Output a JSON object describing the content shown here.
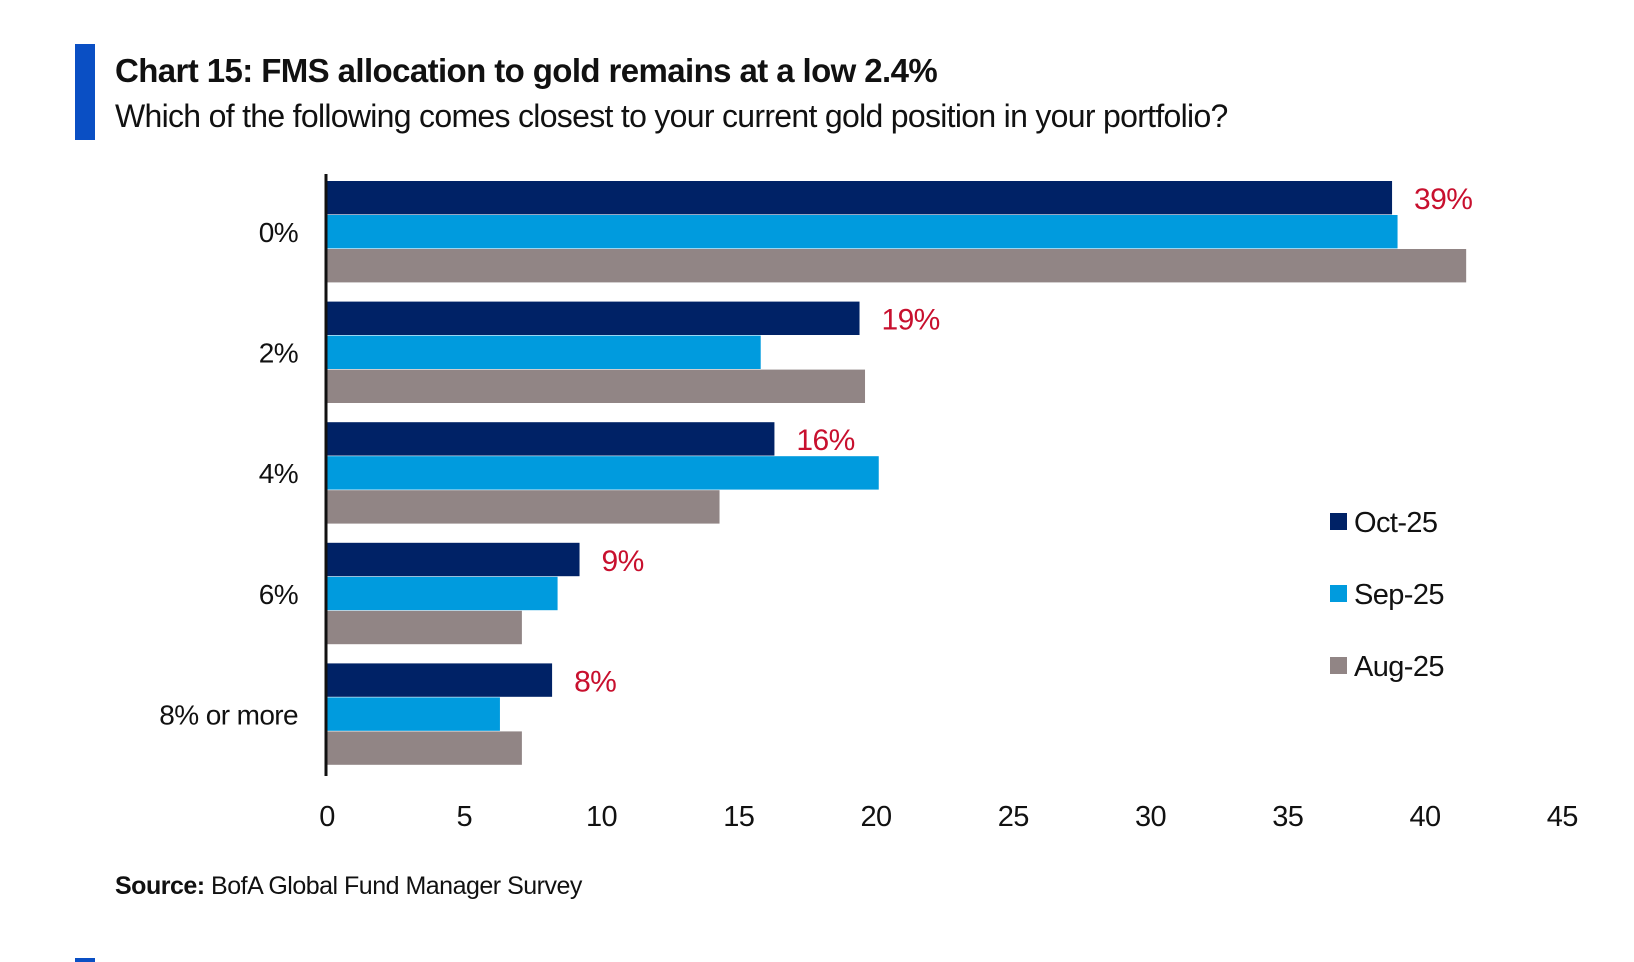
{
  "header": {
    "title": "Chart 15: FMS allocation to gold remains at a low 2.4%",
    "subtitle": "Which of the following comes closest to your current gold position in your portfolio?"
  },
  "footer": {
    "source_label": "Source:",
    "source_text": "BofA Global Fund Manager Survey"
  },
  "colors": {
    "accent": "#0a4fc4",
    "oct": "#002266",
    "sep": "#009bde",
    "aug": "#918585",
    "data_label": "#c8102e"
  },
  "chart_data": {
    "type": "bar",
    "orientation": "horizontal",
    "title": "Chart 15: FMS allocation to gold remains at a low 2.4%",
    "subtitle": "Which of the following comes closest to your current gold position in your portfolio?",
    "categories": [
      "0%",
      "2%",
      "4%",
      "6%",
      "8% or more"
    ],
    "series": [
      {
        "name": "Oct-25",
        "color": "#002266",
        "values": [
          38.8,
          19.4,
          16.3,
          9.2,
          8.2
        ]
      },
      {
        "name": "Sep-25",
        "color": "#009bde",
        "values": [
          39.0,
          15.8,
          20.1,
          8.4,
          6.3
        ]
      },
      {
        "name": "Aug-25",
        "color": "#918585",
        "values": [
          41.5,
          19.6,
          14.3,
          7.1,
          7.1
        ]
      }
    ],
    "data_labels": [
      "39%",
      "19%",
      "16%",
      "9%",
      "8%"
    ],
    "data_labels_series": "Oct-25",
    "xlabel": "",
    "ylabel": "",
    "xlim": [
      0,
      45
    ],
    "xticks": [
      0,
      5,
      10,
      15,
      20,
      25,
      30,
      35,
      40,
      45
    ],
    "grid": false,
    "legend_position": "right",
    "source": "BofA Global Fund Manager Survey"
  }
}
